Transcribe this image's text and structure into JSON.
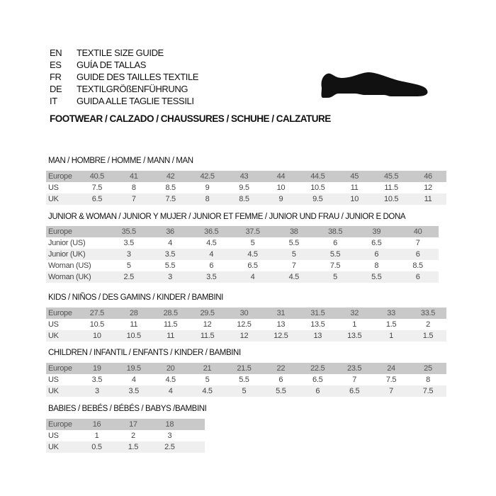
{
  "header": {
    "languages": [
      {
        "code": "EN",
        "text": "TEXTILE SIZE GUIDE"
      },
      {
        "code": "ES",
        "text": "GUÍA DE TALLAS"
      },
      {
        "code": "FR",
        "text": "GUIDE DES TAILLES TEXTILE"
      },
      {
        "code": "DE",
        "text": "TEXTILGRÖßENFÜHRUNG"
      },
      {
        "code": "IT",
        "text": "GUIDA ALLE TAGLIE TESSILI"
      }
    ],
    "footwear": "FOOTWEAR / CALZADO / CHAUSSURES / SCHUHE / CALZATURE",
    "icon": "shoe-icon"
  },
  "sections": [
    {
      "title": "MAN / HOMBRE / HOMME / MANN / MAN",
      "rows": [
        [
          "Europe",
          "40.5",
          "41",
          "42",
          "42.5",
          "43",
          "44",
          "44.5",
          "45",
          "45.5",
          "46"
        ],
        [
          "US",
          "7.5",
          "8",
          "8.5",
          "9",
          "9.5",
          "10",
          "10.5",
          "11",
          "11.5",
          "12"
        ],
        [
          "UK",
          "6.5",
          "7",
          "7.5",
          "8",
          "8.5",
          "9",
          "9.5",
          "10",
          "10.5",
          "11"
        ]
      ]
    },
    {
      "title": "JUNIOR & WOMAN / JUNIOR Y MUJER / JUNIOR ET FEMME / JUNIOR UND FRAU / JUNIOR E DONA",
      "rows": [
        [
          "Europe",
          "35.5",
          "36",
          "36.5",
          "37.5",
          "38",
          "38.5",
          "39",
          "40"
        ],
        [
          "Junior (US)",
          "3.5",
          "4",
          "4.5",
          "5",
          "5.5",
          "6",
          "6.5",
          "7"
        ],
        [
          "Junior (UK)",
          "3",
          "3.5",
          "4",
          "4.5",
          "5",
          "5.5",
          "6",
          "6"
        ],
        [
          "Woman (US)",
          "5",
          "5.5",
          "6",
          "6.5",
          "7",
          "7.5",
          "8",
          "8.5"
        ],
        [
          "Woman (UK)",
          "2.5",
          "3",
          "3.5",
          "4",
          "4.5",
          "5",
          "5.5",
          "6"
        ]
      ]
    },
    {
      "title": "KIDS / NIÑOS / DES GAMINS / KINDER / BAMBINI",
      "rows": [
        [
          "Europe",
          "27.5",
          "28",
          "28.5",
          "29.5",
          "30",
          "31",
          "31.5",
          "32",
          "33",
          "33.5"
        ],
        [
          "US",
          "10.5",
          "11",
          "11.5",
          "12",
          "12.5",
          "13",
          "13.5",
          "1",
          "1.5",
          "2"
        ],
        [
          "UK",
          "10",
          "10.5",
          "11",
          "11.5",
          "12",
          "12.5",
          "13",
          "13.5",
          "1",
          "1.5"
        ]
      ]
    },
    {
      "title": "CHILDREN / INFANTIL / ENFANTS / KINDER / BAMBINI",
      "rows": [
        [
          "Europe",
          "19",
          "19.5",
          "20",
          "21",
          "21.5",
          "22",
          "22.5",
          "23.5",
          "24",
          "25"
        ],
        [
          "US",
          "3.5",
          "4",
          "4.5",
          "5",
          "5.5",
          "6",
          "6.5",
          "7",
          "7.5",
          "8"
        ],
        [
          "UK",
          "3",
          "3.5",
          "4",
          "4.5",
          "5",
          "5.5",
          "6",
          "6.5",
          "7",
          "7.5"
        ]
      ]
    },
    {
      "title": "BABIES  / BEBÉS / BÉBÉS / BABYS /BAMBINI",
      "rows": [
        [
          "Europe",
          "16",
          "17",
          "18"
        ],
        [
          "US",
          "1",
          "2",
          "3"
        ],
        [
          "UK",
          "0.5",
          "1.5",
          "2.5"
        ]
      ]
    }
  ]
}
